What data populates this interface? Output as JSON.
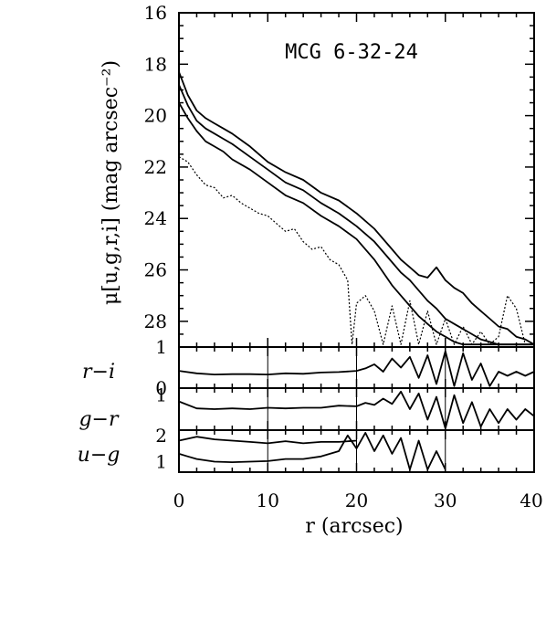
{
  "chart_data": {
    "type": "line",
    "title": "MCG 6-32-24",
    "xlabel": "r (arcsec)",
    "xlim": [
      0,
      40
    ],
    "x_ticks": [
      "0",
      "10",
      "20",
      "30",
      "40"
    ],
    "panels": [
      {
        "id": "mu",
        "ylabel": "μ[u,g,r,i] (mag arcsec⁻²)",
        "ylim": [
          16,
          29
        ],
        "inverted": true,
        "y_ticks": [
          "16",
          "18",
          "20",
          "22",
          "24",
          "26",
          "28"
        ],
        "series": [
          {
            "style": "solid",
            "x": [
              0,
              1,
              2,
              3,
              4,
              5,
              6,
              8,
              10,
              12,
              14,
              16,
              18,
              20,
              22,
              24,
              25,
              26,
              27,
              28,
              29,
              30,
              31,
              32,
              33,
              34,
              35,
              36,
              37,
              38,
              39,
              40
            ],
            "y": [
              18.3,
              19.2,
              19.8,
              20.1,
              20.3,
              20.5,
              20.7,
              21.2,
              21.8,
              22.2,
              22.5,
              23.0,
              23.3,
              23.8,
              24.4,
              25.2,
              25.6,
              25.9,
              26.2,
              26.3,
              25.9,
              26.4,
              26.7,
              26.9,
              27.3,
              27.6,
              27.9,
              28.2,
              28.3,
              28.6,
              28.7,
              28.9
            ]
          },
          {
            "style": "solid",
            "x": [
              0,
              1,
              2,
              3,
              4,
              5,
              6,
              8,
              10,
              12,
              14,
              16,
              18,
              20,
              22,
              24,
              25,
              26,
              27,
              28,
              29,
              30,
              31,
              32,
              33,
              34,
              35,
              36,
              37,
              38,
              39,
              40
            ],
            "y": [
              18.8,
              19.6,
              20.2,
              20.5,
              20.7,
              20.9,
              21.1,
              21.6,
              22.1,
              22.6,
              22.9,
              23.4,
              23.8,
              24.3,
              24.9,
              25.7,
              26.1,
              26.4,
              26.8,
              27.2,
              27.5,
              27.9,
              28.1,
              28.3,
              28.5,
              28.7,
              28.8,
              28.9,
              28.9,
              28.9,
              28.9,
              28.9
            ]
          },
          {
            "style": "solid",
            "x": [
              0,
              1,
              2,
              3,
              4,
              5,
              6,
              8,
              10,
              12,
              14,
              16,
              18,
              20,
              22,
              24,
              25,
              26,
              27,
              28,
              29,
              30,
              31,
              32,
              33,
              34,
              35,
              36,
              37,
              38,
              39,
              40
            ],
            "y": [
              19.5,
              20.1,
              20.6,
              21.0,
              21.2,
              21.4,
              21.7,
              22.1,
              22.6,
              23.1,
              23.4,
              23.9,
              24.3,
              24.8,
              25.6,
              26.6,
              27.0,
              27.4,
              27.8,
              28.1,
              28.4,
              28.6,
              28.8,
              28.9,
              28.9,
              28.9,
              28.9,
              28.9,
              28.9,
              28.9,
              28.9,
              28.9
            ]
          },
          {
            "style": "dotted",
            "x": [
              0,
              1,
              2,
              3,
              4,
              5,
              6,
              7,
              8,
              9,
              10,
              11,
              12,
              13,
              14,
              15,
              16,
              17,
              18,
              19,
              19.5,
              20,
              21,
              22,
              23,
              24,
              25,
              26,
              27,
              28,
              29,
              30,
              31,
              32,
              33,
              34,
              35,
              36,
              37,
              38,
              39,
              40
            ],
            "y": [
              21.6,
              21.8,
              22.3,
              22.7,
              22.8,
              23.2,
              23.1,
              23.4,
              23.6,
              23.8,
              23.9,
              24.2,
              24.5,
              24.4,
              24.9,
              25.2,
              25.1,
              25.6,
              25.8,
              26.4,
              28.9,
              27.3,
              27.0,
              27.6,
              28.9,
              27.4,
              28.9,
              27.2,
              28.9,
              27.6,
              28.9,
              27.9,
              28.9,
              28.2,
              28.9,
              28.4,
              28.9,
              28.6,
              27.0,
              27.5,
              28.9,
              28.9
            ]
          }
        ]
      },
      {
        "id": "ri",
        "label": "r−i",
        "ylim": [
          0,
          1
        ],
        "y_ticks": [
          "1",
          "0"
        ],
        "series": [
          {
            "style": "solid",
            "x": [
              0,
              2,
              4,
              6,
              8,
              10,
              12,
              14,
              16,
              18,
              20,
              21,
              22,
              23,
              24,
              25,
              26,
              27,
              28,
              29,
              30,
              31,
              32,
              33,
              34,
              35,
              36,
              37,
              38,
              39,
              40
            ],
            "y": [
              0.42,
              0.36,
              0.33,
              0.34,
              0.34,
              0.33,
              0.36,
              0.35,
              0.38,
              0.39,
              0.42,
              0.48,
              0.58,
              0.4,
              0.72,
              0.5,
              0.76,
              0.25,
              0.8,
              0.1,
              0.9,
              0.05,
              0.85,
              0.2,
              0.6,
              0.05,
              0.4,
              0.3,
              0.4,
              0.3,
              0.4
            ]
          }
        ]
      },
      {
        "id": "gr",
        "label": "g−r",
        "ylim": [
          0,
          1.2
        ],
        "y_ticks": [
          "1"
        ],
        "series": [
          {
            "style": "solid",
            "x": [
              0,
              2,
              4,
              6,
              8,
              10,
              12,
              14,
              16,
              18,
              20,
              21,
              22,
              23,
              24,
              25,
              26,
              27,
              28,
              29,
              30,
              31,
              32,
              33,
              34,
              35,
              36,
              37,
              38,
              39,
              40
            ],
            "y": [
              0.82,
              0.62,
              0.6,
              0.62,
              0.6,
              0.64,
              0.62,
              0.64,
              0.64,
              0.7,
              0.68,
              0.78,
              0.72,
              0.9,
              0.75,
              1.1,
              0.6,
              1.05,
              0.3,
              0.95,
              0.05,
              1.0,
              0.2,
              0.8,
              0.1,
              0.6,
              0.2,
              0.6,
              0.3,
              0.6,
              0.4
            ]
          }
        ]
      },
      {
        "id": "ug",
        "label": "u−g",
        "ylim": [
          0.6,
          2.2
        ],
        "y_ticks": [
          "2",
          "1"
        ],
        "series": [
          {
            "style": "solid",
            "x": [
              0,
              1,
              2,
              4,
              6,
              8,
              10,
              12,
              14,
              16,
              18,
              19,
              20,
              21,
              22,
              23,
              24,
              25,
              26,
              27,
              28,
              29,
              30
            ],
            "y": [
              1.3,
              1.2,
              1.1,
              1.0,
              0.98,
              1.0,
              1.02,
              1.1,
              1.1,
              1.2,
              1.4,
              2.0,
              1.5,
              2.1,
              1.4,
              2.0,
              1.3,
              1.9,
              0.7,
              1.8,
              0.7,
              1.4,
              0.7
            ]
          },
          {
            "style": "solid",
            "x": [
              0,
              2,
              4,
              6,
              8,
              10,
              12,
              14,
              16,
              18,
              20
            ],
            "y": [
              1.8,
              1.95,
              1.85,
              1.8,
              1.75,
              1.7,
              1.78,
              1.7,
              1.75,
              1.75,
              1.8
            ]
          }
        ]
      }
    ],
    "grid": "vertical lines only in color panels at x = 10, 20, 30",
    "legend": "none"
  }
}
